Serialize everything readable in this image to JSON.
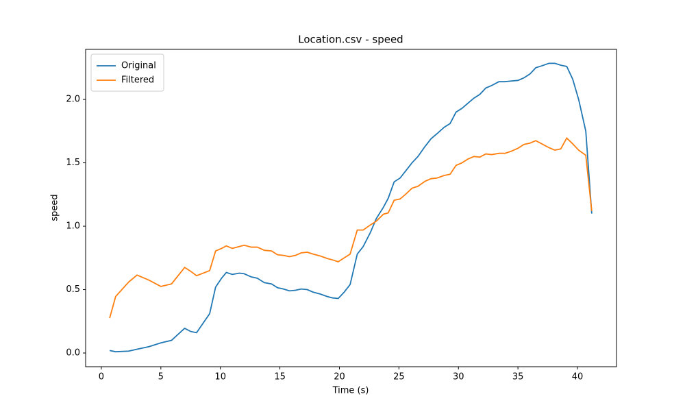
{
  "chart_data": {
    "type": "line",
    "title": "Location.csv - speed",
    "x_label": "Time (s)",
    "y_label": "speed",
    "x": [
      0.7,
      1.2,
      2.3,
      3,
      4,
      5,
      5.9,
      7,
      7.5,
      8,
      9.1,
      9.6,
      10.1,
      10.5,
      11,
      11.6,
      12,
      12.6,
      13.1,
      13.7,
      14.3,
      14.8,
      15.3,
      15.8,
      16.3,
      16.8,
      17.3,
      17.8,
      18.4,
      19.0,
      19.4,
      19.9,
      20.4,
      20.9,
      21.5,
      22.0,
      22.6,
      23.1,
      23.7,
      24.1,
      24.6,
      25.1,
      25.6,
      26.1,
      26.6,
      27.2,
      27.7,
      28.2,
      28.8,
      29.3,
      29.8,
      30.3,
      30.8,
      31.3,
      31.8,
      32.3,
      32.8,
      33.4,
      33.9,
      34.4,
      35.0,
      35.5,
      36.0,
      36.5,
      37.0,
      37.6,
      38.1,
      38.6,
      39.1,
      39.6,
      40.1,
      40.7,
      41.2
    ],
    "series": [
      {
        "name": "Original",
        "color": "#1f77b4",
        "values": [
          0.02,
          0.01,
          0.015,
          0.03,
          0.05,
          0.08,
          0.1,
          0.195,
          0.17,
          0.16,
          0.31,
          0.52,
          0.59,
          0.635,
          0.62,
          0.63,
          0.625,
          0.6,
          0.59,
          0.555,
          0.545,
          0.515,
          0.505,
          0.49,
          0.495,
          0.505,
          0.5,
          0.48,
          0.465,
          0.445,
          0.435,
          0.43,
          0.48,
          0.54,
          0.78,
          0.84,
          0.95,
          1.06,
          1.15,
          1.22,
          1.35,
          1.38,
          1.44,
          1.5,
          1.55,
          1.63,
          1.69,
          1.73,
          1.78,
          1.81,
          1.9,
          1.93,
          1.97,
          2.01,
          2.04,
          2.09,
          2.11,
          2.14,
          2.14,
          2.145,
          2.15,
          2.17,
          2.2,
          2.25,
          2.265,
          2.285,
          2.285,
          2.27,
          2.26,
          2.16,
          2.0,
          1.75,
          1.1
        ]
      },
      {
        "name": "Filtered",
        "color": "#ff7f0e",
        "values": [
          0.275,
          0.445,
          0.56,
          0.615,
          0.575,
          0.525,
          0.545,
          0.675,
          0.645,
          0.61,
          0.65,
          0.805,
          0.825,
          0.845,
          0.825,
          0.84,
          0.85,
          0.835,
          0.835,
          0.81,
          0.805,
          0.775,
          0.77,
          0.76,
          0.77,
          0.79,
          0.795,
          0.78,
          0.765,
          0.745,
          0.735,
          0.72,
          0.75,
          0.78,
          0.97,
          0.97,
          1.01,
          1.04,
          1.095,
          1.105,
          1.205,
          1.215,
          1.255,
          1.3,
          1.315,
          1.355,
          1.375,
          1.38,
          1.4,
          1.41,
          1.48,
          1.5,
          1.53,
          1.55,
          1.545,
          1.57,
          1.565,
          1.575,
          1.575,
          1.59,
          1.615,
          1.645,
          1.655,
          1.675,
          1.65,
          1.62,
          1.6,
          1.61,
          1.695,
          1.65,
          1.6,
          1.56,
          1.12
        ]
      }
    ],
    "xlim": [
      -1.32,
      43.28
    ],
    "xticks": [
      0,
      5,
      10,
      15,
      20,
      25,
      30,
      35,
      40
    ],
    "ylim": [
      -0.108,
      2.395
    ],
    "yticks": [
      {
        "value": 0,
        "label": "0.0"
      },
      0.5,
      {
        "value": 1,
        "label": "1.0"
      },
      1.5,
      {
        "value": 2,
        "label": "2.0"
      }
    ],
    "legend": "upper left",
    "grid": false
  }
}
